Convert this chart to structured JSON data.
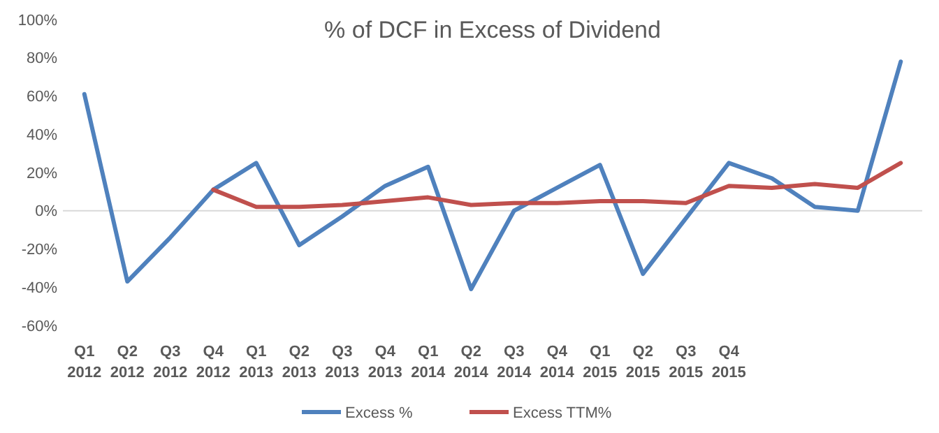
{
  "chart_data": {
    "type": "line",
    "title": "% of DCF in Excess of Dividend",
    "categories": [
      "Q1\n2012",
      "Q2\n2012",
      "Q3\n2012",
      "Q4\n2012",
      "Q1\n2013",
      "Q2\n2013",
      "Q3\n2013",
      "Q4\n2013",
      "Q1\n2014",
      "Q2\n2014",
      "Q3\n2014",
      "Q4\n2014",
      "Q1\n2015",
      "Q2\n2015",
      "Q3\n2015",
      "Q4\n2015",
      null,
      null,
      null,
      null
    ],
    "series": [
      {
        "name": "Excess %",
        "color": "#4f81bd",
        "values": [
          61,
          -37,
          -14,
          11,
          25,
          -18,
          -3,
          13,
          23,
          -41,
          0,
          12,
          24,
          -33,
          -4,
          25,
          17,
          2,
          0,
          78
        ]
      },
      {
        "name": "Excess TTM%",
        "color": "#c0504d",
        "values": [
          null,
          null,
          null,
          11,
          2,
          2,
          3,
          5,
          7,
          3,
          4,
          4,
          5,
          5,
          4,
          13,
          12,
          14,
          12,
          25
        ]
      }
    ],
    "ylim": [
      -60,
      100
    ],
    "yticks": [
      {
        "value": -60,
        "label": "-60%"
      },
      {
        "value": -40,
        "label": "-40%"
      },
      {
        "value": -20,
        "label": "-20%"
      },
      {
        "value": 0,
        "label": "0%"
      },
      {
        "value": 20,
        "label": "20%"
      },
      {
        "value": 40,
        "label": "40%"
      },
      {
        "value": 60,
        "label": "60%"
      },
      {
        "value": 80,
        "label": "80%"
      },
      {
        "value": 100,
        "label": "100%"
      }
    ],
    "legend": "bottom",
    "line_style": "solid"
  }
}
